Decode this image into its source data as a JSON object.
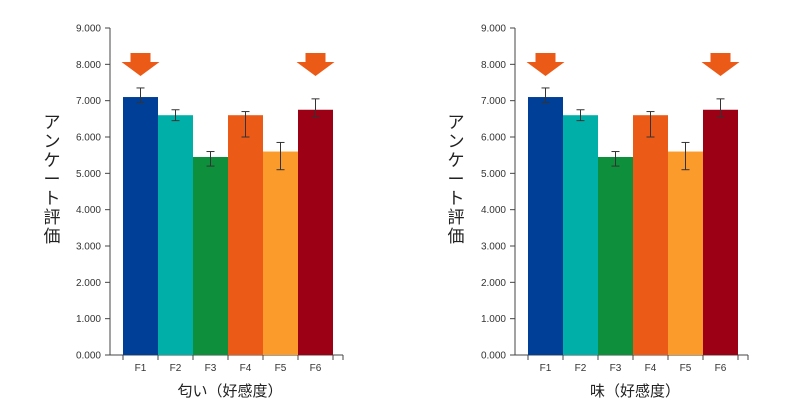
{
  "chart_data": [
    {
      "type": "bar",
      "categories": [
        "F1",
        "F2",
        "F3",
        "F4",
        "F5",
        "F6"
      ],
      "values": [
        7.1,
        6.6,
        5.45,
        6.6,
        5.6,
        6.75
      ],
      "error_low": [
        6.95,
        6.45,
        5.2,
        6.0,
        5.1,
        6.55
      ],
      "error_high": [
        7.35,
        6.75,
        5.6,
        6.7,
        5.85,
        7.05
      ],
      "colors": [
        "#003f98",
        "#00b0a8",
        "#0e8f3c",
        "#eb5a17",
        "#fb9b2b",
        "#9b0015"
      ],
      "ylabel": "アンケート評価",
      "xlabel": "匂い（好感度）",
      "ylim": [
        0,
        9
      ],
      "yticks": [
        "0.000",
        "1.000",
        "2.000",
        "3.000",
        "4.000",
        "5.000",
        "6.000",
        "7.000",
        "8.000",
        "9.000"
      ],
      "highlighted": [
        "F1",
        "F6"
      ],
      "highlight_color": "#eb5a17",
      "grid": false
    },
    {
      "type": "bar",
      "categories": [
        "F1",
        "F2",
        "F3",
        "F4",
        "F5",
        "F6"
      ],
      "values": [
        7.1,
        6.6,
        5.45,
        6.6,
        5.6,
        6.75
      ],
      "error_low": [
        6.95,
        6.45,
        5.2,
        6.0,
        5.1,
        6.55
      ],
      "error_high": [
        7.35,
        6.75,
        5.6,
        6.7,
        5.85,
        7.05
      ],
      "colors": [
        "#003f98",
        "#00b0a8",
        "#0e8f3c",
        "#eb5a17",
        "#fb9b2b",
        "#9b0015"
      ],
      "ylabel": "アンケート評価",
      "xlabel": "味（好感度）",
      "ylim": [
        0,
        9
      ],
      "yticks": [
        "0.000",
        "1.000",
        "2.000",
        "3.000",
        "4.000",
        "5.000",
        "6.000",
        "7.000",
        "8.000",
        "9.000"
      ],
      "highlighted": [
        "F1",
        "F6"
      ],
      "highlight_color": "#eb5a17",
      "grid": false
    }
  ]
}
